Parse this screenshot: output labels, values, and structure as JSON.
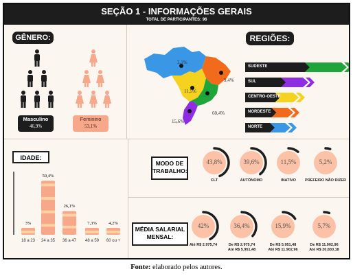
{
  "header": {
    "title": "SEÇÃO 1 - INFORMAÇÕES GERAIS",
    "subtitle": "TOTAL DE PARTICIPANTES: 96"
  },
  "genero": {
    "heading": "GÊNERO:",
    "masculino": {
      "label": "Masculino",
      "pct": "46,9%"
    },
    "feminino": {
      "label": "Feminino",
      "pct": "53,1%"
    }
  },
  "regioes": {
    "heading": "REGIÕES:",
    "items": [
      {
        "label": "SUDESTE",
        "color": "#1fa53a"
      },
      {
        "label": "SUL",
        "color": "#8e2de2"
      },
      {
        "label": "CENTRO-OESTE",
        "color": "#f5d21f"
      },
      {
        "label": "NORDESTE",
        "color": "#f26a1b"
      },
      {
        "label": "NORTE",
        "color": "#3a97e6"
      }
    ],
    "map_labels": {
      "norte": "3,1%",
      "nordeste": "9,4%",
      "centro_oeste": "11,5%",
      "sudeste": "60,4%",
      "sul": "15,6%"
    }
  },
  "idade": {
    "heading": "IDADE:"
  },
  "modo": {
    "heading": "MODO DE TRABALHO:"
  },
  "salario": {
    "heading": "MÉDIA SALARIAL MENSAL:"
  },
  "chart_data": [
    {
      "type": "bar",
      "title": "IDADE:",
      "categories": [
        "18 a 23",
        "24 a 35",
        "36 a 47",
        "48 a 59",
        "60 ou +"
      ],
      "values": [
        3.1,
        59.4,
        26.1,
        7.3,
        4.2
      ],
      "value_labels": [
        "3%",
        "59,4%",
        "26,1%",
        "7,3%",
        "4,2%"
      ],
      "ylim": [
        0,
        65
      ]
    },
    {
      "type": "pie",
      "title": "MODO DE TRABALHO:",
      "categories": [
        "CLT",
        "AUTÔNOMO",
        "INATIVO",
        "PREFEIRO NÃO DIZER"
      ],
      "values": [
        43.8,
        39.6,
        11.5,
        5.2
      ],
      "value_labels": [
        "43,8%",
        "39,6%",
        "11,5%",
        "5,2%"
      ]
    },
    {
      "type": "pie",
      "title": "MÉDIA SALARIAL MENSAL:",
      "categories": [
        "Até R$ 2.975,74",
        "De R$ 2.975,74 Até R$ 5.951,48",
        "De R$ 5.951,48 Até R$ 11.902,96",
        "De R$ 11.902,96 Até R$ 20.830,18"
      ],
      "category_lines": [
        [
          "Até R$ 2.975,74"
        ],
        [
          "De R$ 2.975,74",
          "Até R$ 5.951,48"
        ],
        [
          "De R$ 5.951,48",
          "Até R$ 11.902,96"
        ],
        [
          "De R$ 11.902,96",
          "Até R$ 20.830,18"
        ]
      ],
      "values": [
        42,
        36.4,
        15.9,
        5.7
      ],
      "value_labels": [
        "42%",
        "36,4%",
        "15,9%",
        "5,7%"
      ]
    }
  ],
  "caption": {
    "bold": "Fonte:",
    "text": " elaborado pelos autores."
  }
}
